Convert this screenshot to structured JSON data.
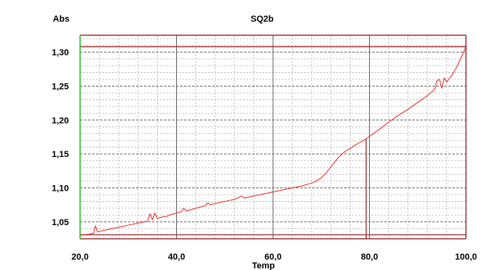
{
  "chart_data": {
    "type": "line",
    "title": "SQ2b",
    "ylabel": "Abs",
    "xlabel": "Temp",
    "xlim": [
      20,
      100
    ],
    "ylim": [
      1.025,
      1.325
    ],
    "grid": true,
    "x_ticks": [
      {
        "value": 20,
        "label": "20,0"
      },
      {
        "value": 40,
        "label": "40,0"
      },
      {
        "value": 60,
        "label": "60,0"
      },
      {
        "value": 80,
        "label": "80,0"
      },
      {
        "value": 100,
        "label": "100,0"
      }
    ],
    "y_ticks": [
      {
        "value": 1.05,
        "label": "1,05"
      },
      {
        "value": 1.1,
        "label": "1,10"
      },
      {
        "value": 1.15,
        "label": "1,15"
      },
      {
        "value": 1.2,
        "label": "1,20"
      },
      {
        "value": 1.25,
        "label": "1,25"
      },
      {
        "value": 1.3,
        "label": "1,30"
      }
    ],
    "reference_lines": {
      "horizontal": [
        1.031,
        1.308
      ],
      "vertical": [
        79.3
      ]
    },
    "series": [
      {
        "color": "#e8312b",
        "x": [
          20.0,
          21.0,
          22.0,
          22.8,
          23.2,
          23.6,
          24.0,
          26.0,
          28.0,
          30.0,
          32.0,
          34.0,
          34.5,
          35.0,
          35.5,
          36.0,
          37.0,
          38.0,
          39.0,
          40.0,
          41.0,
          41.5,
          42.0,
          43.0,
          44.0,
          45.0,
          46.0,
          46.5,
          47.0,
          48.0,
          50.0,
          52.0,
          53.5,
          54.0,
          56.0,
          58.0,
          60.0,
          62.0,
          64.0,
          66.0,
          68.0,
          69.0,
          70.0,
          71.0,
          72.0,
          73.0,
          74.0,
          75.0,
          76.0,
          77.0,
          78.0,
          79.3,
          80.0,
          82.0,
          84.0,
          86.0,
          88.0,
          90.0,
          92.0,
          93.5,
          94.0,
          94.5,
          95.0,
          95.5,
          96.0,
          97.0,
          98.0,
          99.0,
          100.0
        ],
        "y": [
          1.03,
          1.031,
          1.032,
          1.033,
          1.044,
          1.035,
          1.036,
          1.039,
          1.042,
          1.045,
          1.048,
          1.051,
          1.062,
          1.053,
          1.063,
          1.055,
          1.057,
          1.058,
          1.061,
          1.063,
          1.065,
          1.07,
          1.066,
          1.068,
          1.07,
          1.072,
          1.074,
          1.078,
          1.075,
          1.077,
          1.08,
          1.083,
          1.088,
          1.085,
          1.088,
          1.091,
          1.094,
          1.097,
          1.1,
          1.103,
          1.107,
          1.11,
          1.115,
          1.122,
          1.131,
          1.14,
          1.148,
          1.154,
          1.158,
          1.163,
          1.167,
          1.172,
          1.176,
          1.186,
          1.197,
          1.207,
          1.216,
          1.226,
          1.236,
          1.245,
          1.258,
          1.26,
          1.247,
          1.262,
          1.256,
          1.265,
          1.277,
          1.292,
          1.308
        ]
      }
    ]
  },
  "colors": {
    "axis_green": "#2bbf2b",
    "border_red": "#8b1a1a",
    "grid_major": "#6b6b6b",
    "grid_minor": "#b5b5b5",
    "series_red": "#e8312b",
    "ref_line": "#9b2a2a"
  }
}
